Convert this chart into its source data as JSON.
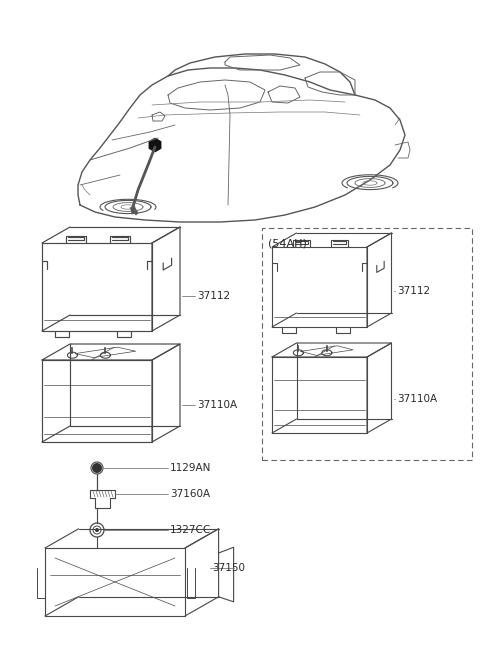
{
  "background_color": "#ffffff",
  "line_color": "#4a4a4a",
  "thin_line": "#6a6a6a",
  "dark_fill": "#1a1a1a",
  "label_color": "#2a2a2a",
  "dashed_box_label": "(54AH)",
  "label_37112_L": "37112",
  "label_37112_R": "37112",
  "label_37110A_L": "37110A",
  "label_37110A_R": "37110A",
  "label_1129AN": "1129AN",
  "label_37160A": "37160A",
  "label_1327CC": "1327CC",
  "label_37150": "37150",
  "car_color": "#555555",
  "car_dark": "#222222",
  "font_size_label": 7.5
}
